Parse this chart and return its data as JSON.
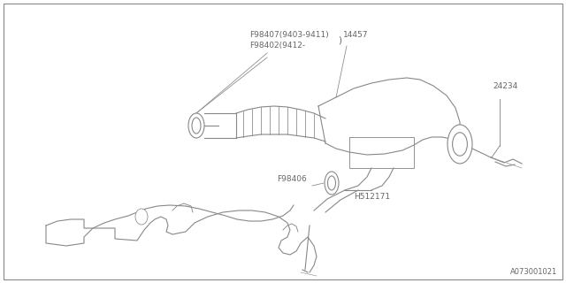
{
  "bg_color": "#ffffff",
  "border_color": "#888888",
  "line_color": "#888888",
  "label_color": "#666666",
  "bg_fill": "#f8f8f8",
  "part_labels": {
    "F98407_line1": "F98407(9403-9411)",
    "F98407_line2": "F98402(9412-",
    "part_14457": "14457",
    "part_24234": "24234",
    "part_F98406": "F98406",
    "part_H512171": "H512171"
  },
  "footer_text": "A073001021",
  "label_fontsize": 6.5
}
